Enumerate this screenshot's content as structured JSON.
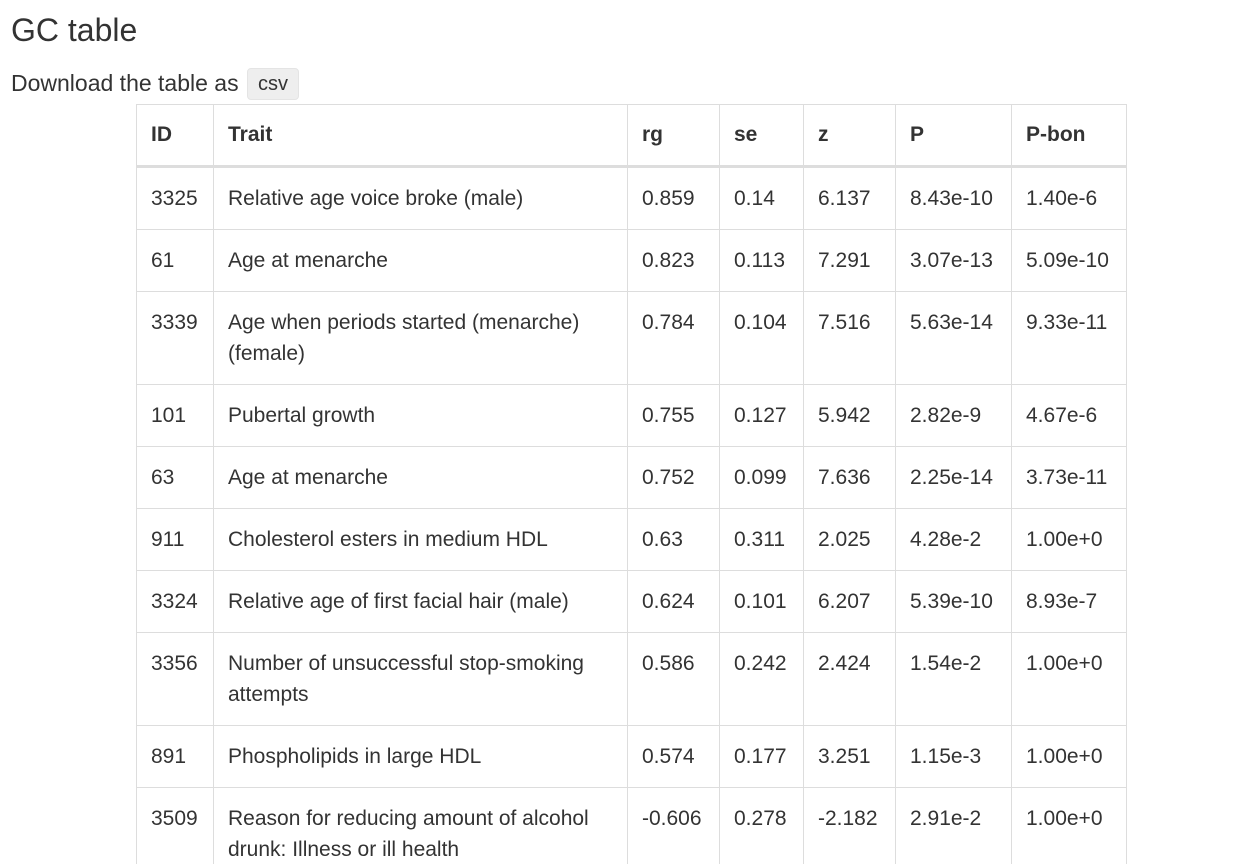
{
  "page": {
    "title": "GC table",
    "download_text": "Download the table as",
    "download_button": "csv"
  },
  "table": {
    "headers": [
      "ID",
      "Trait",
      "rg",
      "se",
      "z",
      "P",
      "P-bon"
    ],
    "rows": [
      [
        "3325",
        "Relative age voice broke (male)",
        "0.859",
        "0.14",
        "6.137",
        "8.43e-10",
        "1.40e-6"
      ],
      [
        "61",
        "Age at menarche",
        "0.823",
        "0.113",
        "7.291",
        "3.07e-13",
        "5.09e-10"
      ],
      [
        "3339",
        "Age when periods started (menarche) (female)",
        "0.784",
        "0.104",
        "7.516",
        "5.63e-14",
        "9.33e-11"
      ],
      [
        "101",
        "Pubertal growth",
        "0.755",
        "0.127",
        "5.942",
        "2.82e-9",
        "4.67e-6"
      ],
      [
        "63",
        "Age at menarche",
        "0.752",
        "0.099",
        "7.636",
        "2.25e-14",
        "3.73e-11"
      ],
      [
        "911",
        "Cholesterol esters in medium HDL",
        "0.63",
        "0.311",
        "2.025",
        "4.28e-2",
        "1.00e+0"
      ],
      [
        "3324",
        "Relative age of first facial hair (male)",
        "0.624",
        "0.101",
        "6.207",
        "5.39e-10",
        "8.93e-7"
      ],
      [
        "3356",
        "Number of unsuccessful stop-smoking attempts",
        "0.586",
        "0.242",
        "2.424",
        "1.54e-2",
        "1.00e+0"
      ],
      [
        "891",
        "Phospholipids in large HDL",
        "0.574",
        "0.177",
        "3.251",
        "1.15e-3",
        "1.00e+0"
      ],
      [
        "3509",
        "Reason for reducing amount of alcohol drunk: Illness or ill health",
        "-0.606",
        "0.278",
        "-2.182",
        "2.91e-2",
        "1.00e+0"
      ]
    ]
  }
}
